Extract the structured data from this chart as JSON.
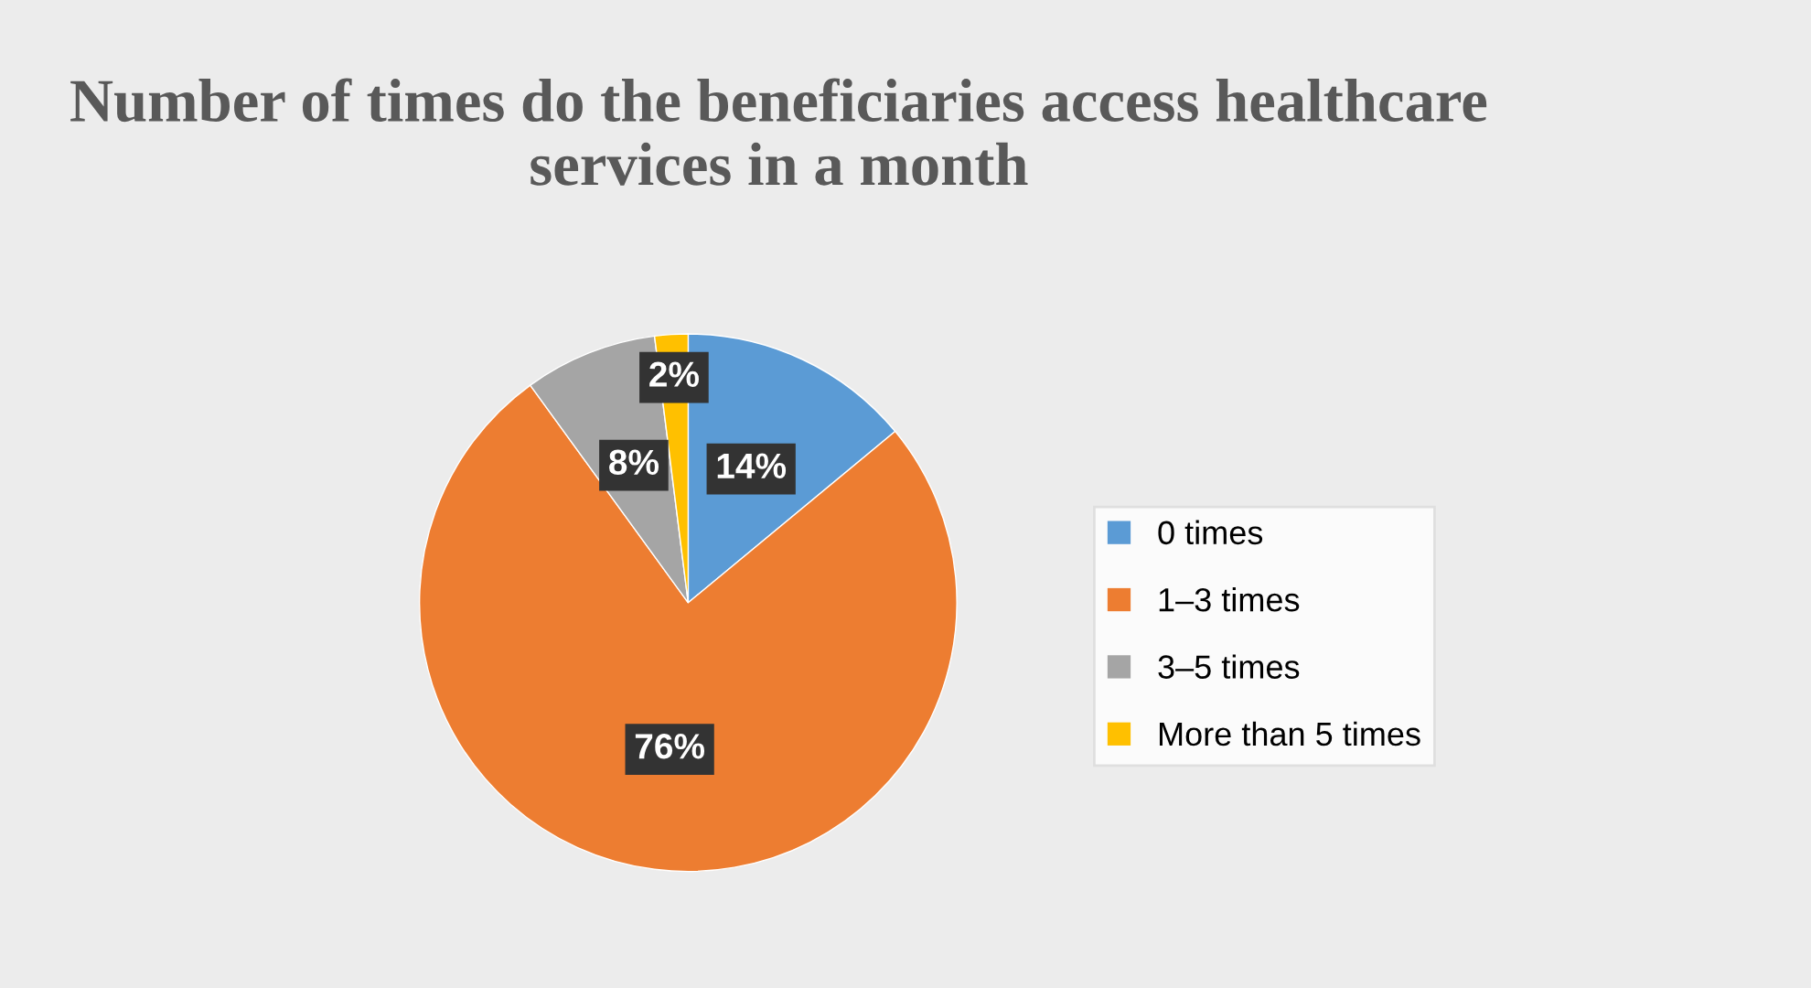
{
  "chart_data": {
    "type": "pie",
    "title": "Number of times do the beneficiaries access healthcare services in a month",
    "categories": [
      "0 times",
      "1–3 times",
      "3–5 times",
      "More than 5 times"
    ],
    "values": [
      14,
      76,
      8,
      2
    ],
    "colors": [
      "#5b9bd5",
      "#ed7d31",
      "#a5a5a5",
      "#ffc000"
    ],
    "value_labels": [
      "14%",
      "76%",
      "8%",
      "2%"
    ],
    "legend": "right"
  }
}
